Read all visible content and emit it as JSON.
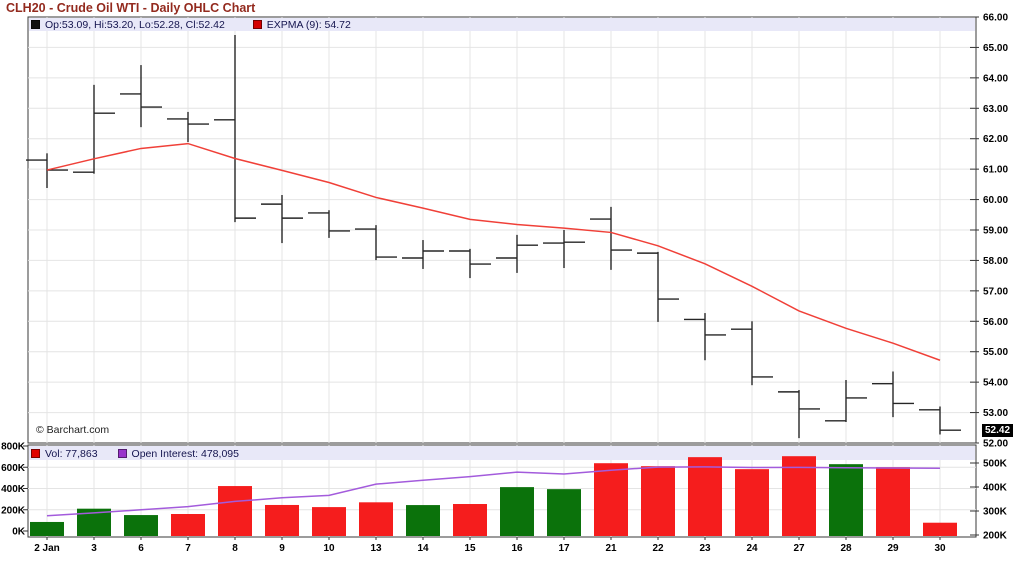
{
  "header": {
    "title": "CLH20 - Crude Oil WTI - Daily OHLC Chart"
  },
  "watermark": "© Barchart.com",
  "legend_main": {
    "ohlc_label": "Op:53.09, Hi:53.20, Lo:52.28, Cl:52.42",
    "expma_label": "EXPMA (9): 54.72"
  },
  "legend_volume": {
    "vol_label": "Vol: 77,863",
    "oi_label": "Open Interest: 478,095"
  },
  "last_price_label": "52.42",
  "colors": {
    "title": "#932A1E",
    "legend_text": "#14144E",
    "legend_bg": "#E8E8F8",
    "ohlc_swatch": "#111111",
    "expma_swatch": "#D40000",
    "vol_swatch": "#E00000",
    "oi_swatch": "#9933CC",
    "ohlc_bar": "#262626",
    "expma_line": "#F04038",
    "vol_up": "#0B720B",
    "vol_down": "#F51D1D",
    "oi_line": "#A35BDC",
    "grid": "#E4E4E4",
    "border": "#3A3A3A",
    "axis_text": "#000000",
    "last_price_bg": "#000000",
    "last_price_text": "#FFFFFF"
  },
  "chart_data": [
    {
      "type": "ohlc",
      "title": "CLH20 - Crude Oil WTI - Daily OHLC Chart",
      "x_categories": [
        "2 Jan",
        "3",
        "6",
        "7",
        "8",
        "9",
        "10",
        "13",
        "14",
        "15",
        "16",
        "17",
        "21",
        "22",
        "23",
        "24",
        "27",
        "28",
        "29",
        "30"
      ],
      "ylim": [
        52,
        66
      ],
      "y_ticks": [
        66,
        65,
        64,
        63,
        62,
        61,
        60,
        59,
        58,
        57,
        56,
        55,
        54,
        53,
        52
      ],
      "y_tick_labels": [
        "66.00",
        "65.00",
        "64.00",
        "63.00",
        "62.00",
        "61.00",
        "60.00",
        "59.00",
        "58.00",
        "57.00",
        "56.00",
        "55.00",
        "54.00",
        "53.00",
        "52.00"
      ],
      "grid": true,
      "legend_position": "top-left",
      "legend": [
        "Op:53.09, Hi:53.20, Lo:52.28, Cl:52.42",
        "EXPMA (9): 54.72"
      ],
      "last_price": 52.42,
      "series": [
        {
          "name": "OHLC",
          "type": "ohlc",
          "open": [
            61.3,
            60.9,
            63.47,
            62.65,
            62.62,
            59.85,
            59.56,
            59.03,
            58.08,
            58.31,
            58.08,
            58.57,
            59.36,
            58.24,
            56.06,
            55.74,
            53.68,
            52.73,
            53.95,
            53.09
          ],
          "high": [
            61.52,
            63.77,
            64.42,
            62.88,
            65.41,
            60.15,
            59.65,
            59.16,
            58.67,
            58.38,
            58.84,
            59.0,
            59.76,
            58.28,
            56.27,
            56.0,
            53.74,
            54.07,
            54.35,
            53.2
          ],
          "low": [
            60.38,
            60.85,
            62.38,
            61.89,
            59.26,
            58.57,
            58.74,
            58.01,
            57.72,
            57.42,
            57.59,
            57.75,
            57.69,
            55.98,
            54.72,
            53.9,
            52.16,
            52.69,
            52.85,
            52.28
          ],
          "close": [
            60.97,
            62.84,
            63.04,
            62.48,
            59.39,
            59.39,
            58.97,
            58.11,
            58.31,
            57.88,
            58.5,
            58.6,
            58.34,
            56.73,
            55.55,
            54.17,
            53.12,
            53.48,
            53.3,
            52.42
          ]
        },
        {
          "name": "EXPMA (9)",
          "type": "line",
          "values": [
            60.97,
            61.34,
            61.68,
            61.84,
            61.35,
            60.96,
            60.56,
            60.07,
            59.72,
            59.35,
            59.18,
            59.06,
            58.92,
            58.48,
            57.89,
            57.15,
            56.34,
            55.77,
            55.28,
            54.72
          ]
        }
      ]
    },
    {
      "type": "bar",
      "x_categories": [
        "2 Jan",
        "3",
        "6",
        "7",
        "8",
        "9",
        "10",
        "13",
        "14",
        "15",
        "16",
        "17",
        "21",
        "22",
        "23",
        "24",
        "27",
        "28",
        "29",
        "30"
      ],
      "left_axis": {
        "label": "Volume",
        "ticks": [
          800,
          600,
          400,
          200,
          0
        ],
        "tick_labels": [
          "800K",
          "600K",
          "400K",
          "200K",
          "0K"
        ],
        "lim": [
          0,
          800
        ]
      },
      "right_axis": {
        "label": "Open Interest",
        "ticks": [
          500,
          400,
          300,
          200
        ],
        "tick_labels": [
          "500K",
          "400K",
          "300K",
          "200K"
        ]
      },
      "legend": [
        "Vol: 77,863",
        "Open Interest: 478,095"
      ],
      "series": [
        {
          "name": "Vol",
          "type": "bar",
          "values_k": [
            85,
            210,
            150,
            160,
            423,
            245,
            225,
            270,
            244,
            254,
            413,
            394,
            638,
            610,
            695,
            582,
            704,
            629,
            601,
            78
          ],
          "updown": [
            "up",
            "up",
            "up",
            "down",
            "down",
            "down",
            "down",
            "down",
            "up",
            "down",
            "up",
            "up",
            "down",
            "down",
            "down",
            "down",
            "down",
            "up",
            "down",
            "down"
          ]
        },
        {
          "name": "Open Interest",
          "type": "line",
          "values_k": [
            280,
            292,
            305,
            318,
            340,
            355,
            365,
            412,
            428,
            443,
            462,
            454,
            470,
            483,
            484,
            481,
            482,
            480,
            479,
            478
          ]
        }
      ]
    }
  ]
}
